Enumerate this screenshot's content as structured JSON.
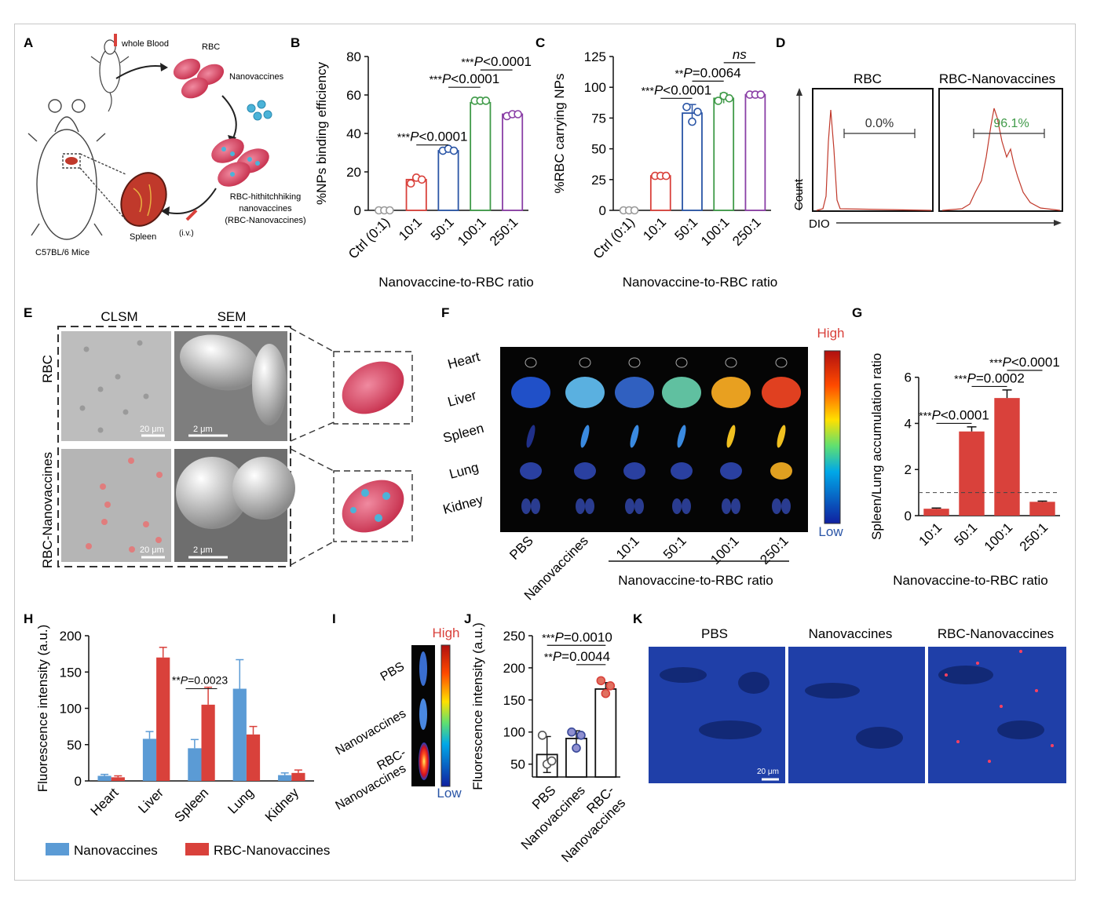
{
  "colors": {
    "red": "#d9413b",
    "blue": "#5b9bd5",
    "purple": "#8a3fa6",
    "green": "#3f9a48",
    "navy": "#2a55a6",
    "gray": "#9a9a9a",
    "dark_red": "#c0392b"
  },
  "panels": {
    "A": {
      "letter": "A",
      "whole_blood": "whole Blood",
      "rbc": "RBC",
      "nanovaccines": "Nanovaccines",
      "hitch_line1": "RBC-hithitchhiking",
      "hitch_line2": "nanovaccines",
      "hitch_line3": "(RBC-Nanovaccines)",
      "spleen": "Spleen",
      "iv": "(i.v.)",
      "mice": "C57BL/6 Mice"
    },
    "D": {
      "letter": "D",
      "left_label": "RBC",
      "right_label": "RBC-Nanovaccines",
      "left_value": "0.0%",
      "right_value": "96.1%",
      "ylabel": "Count",
      "xlabel": "DIO"
    },
    "E": {
      "letter": "E",
      "col1": "CLSM",
      "col2": "SEM",
      "row1": "RBC",
      "row2": "RBC-Nanovaccines",
      "scale_clsm": "20 μm",
      "scale_sem": "2 μm"
    },
    "F": {
      "letter": "F",
      "high": "High",
      "low": "Low",
      "organs": [
        "Heart",
        "Liver",
        "Spleen",
        "Lung",
        "Kidney"
      ],
      "groups": [
        "PBS",
        "Nanovaccines",
        "10:1",
        "50:1",
        "100:1",
        "250:1"
      ],
      "xlabel": "Nanovaccine-to-RBC ratio"
    },
    "I": {
      "letter": "I",
      "high": "High",
      "low": "Low",
      "rows": [
        "PBS",
        "Nanovaccines",
        "RBC-",
        "Nanovaccines"
      ]
    },
    "K": {
      "letter": "K",
      "cols": [
        "PBS",
        "Nanovaccines",
        "RBC-Nanovaccines"
      ],
      "scale": "20 μm"
    }
  },
  "chart_data": [
    {
      "id": "B",
      "letter": "B",
      "type": "bar",
      "categories": [
        "Ctrl (0:1)",
        "10:1",
        "50:1",
        "100:1",
        "250:1"
      ],
      "values": [
        0,
        16,
        31,
        56,
        50
      ],
      "points": [
        [
          0,
          0,
          0
        ],
        [
          14,
          17,
          16
        ],
        [
          31,
          32,
          31
        ],
        [
          57,
          57,
          57
        ],
        [
          49,
          50,
          50
        ]
      ],
      "errors": [
        0,
        1,
        1,
        0.5,
        0.5
      ],
      "ylabel": "%NPs binding efficiency",
      "xlabel": "Nanovaccine-to-RBC ratio",
      "ylim": [
        0,
        80
      ],
      "yticks": [
        0,
        20,
        40,
        60,
        80
      ],
      "annotations": [
        {
          "stars": "***",
          "text": "P<0.0001",
          "from": 1,
          "to": 2,
          "y": 34
        },
        {
          "stars": "***",
          "text": "P<0.0001",
          "from": 2,
          "to": 3,
          "y": 64
        },
        {
          "stars": "***",
          "text": "P<0.0001",
          "from": 3,
          "to": 4,
          "y": 73
        }
      ]
    },
    {
      "id": "C",
      "letter": "C",
      "type": "bar",
      "categories": [
        "Ctrl (0:1)",
        "10:1",
        "50:1",
        "100:1",
        "250:1"
      ],
      "values": [
        0,
        28,
        79,
        91,
        94
      ],
      "points": [
        [
          0,
          0,
          0
        ],
        [
          28,
          28,
          28
        ],
        [
          84,
          72,
          80
        ],
        [
          89,
          93,
          91
        ],
        [
          94,
          94,
          94
        ]
      ],
      "errors": [
        0,
        1,
        7,
        4,
        1
      ],
      "ylabel": "%RBC carrying NPs",
      "xlabel": "Nanovaccine-to-RBC ratio",
      "ylim": [
        0,
        125
      ],
      "yticks": [
        0,
        25,
        50,
        75,
        100,
        125
      ],
      "annotations": [
        {
          "stars": "***",
          "text": "P<0.0001",
          "from": 1,
          "to": 2,
          "y": 91
        },
        {
          "stars": "**",
          "text": "P=0.0064",
          "from": 2,
          "to": 3,
          "y": 105
        },
        {
          "stars": "",
          "text": "ns",
          "from": 3,
          "to": 4,
          "y": 120
        }
      ]
    },
    {
      "id": "G",
      "letter": "G",
      "type": "bar",
      "categories": [
        "10:1",
        "50:1",
        "100:1",
        "250:1"
      ],
      "values": [
        0.3,
        3.65,
        5.1,
        0.6
      ],
      "errors": [
        0.03,
        0.2,
        0.35,
        0.03
      ],
      "ylabel": "Spleen/Lung accumulation ratio",
      "xlabel": "Nanovaccine-to-RBC ratio",
      "ylim": [
        0,
        6.5
      ],
      "yticks": [
        0,
        2,
        4,
        6
      ],
      "reference_line": 1,
      "annotations": [
        {
          "stars": "***",
          "text": "P<0.0001",
          "from": 0,
          "to": 1,
          "y": 4.0
        },
        {
          "stars": "***",
          "text": "P=0.0002",
          "from": 1,
          "to": 2,
          "y": 5.6
        },
        {
          "stars": "***",
          "text": "P<0.0001",
          "from": 2,
          "to": 3,
          "y": 6.3
        }
      ]
    },
    {
      "id": "H",
      "letter": "H",
      "type": "bar",
      "categories": [
        "Heart",
        "Liver",
        "Spleen",
        "Lung",
        "Kidney"
      ],
      "series": [
        {
          "name": "Nanovaccines",
          "values": [
            7,
            58,
            45,
            127,
            8
          ],
          "errors": [
            2,
            10,
            12,
            40,
            3
          ]
        },
        {
          "name": "RBC-Nanovaccines",
          "values": [
            5,
            170,
            105,
            64,
            11
          ],
          "errors": [
            2,
            14,
            24,
            11,
            4
          ]
        }
      ],
      "ylabel": "Fluorescence intensity (a.u.)",
      "ylim": [
        0,
        200
      ],
      "yticks": [
        0,
        50,
        100,
        150,
        200
      ],
      "annotations": [
        {
          "stars": "**",
          "text": "P=0.0023",
          "from": 2,
          "to": 2,
          "y": 140
        }
      ]
    },
    {
      "id": "J",
      "letter": "J",
      "type": "bar",
      "categories": [
        "PBS",
        "Nanovaccines",
        "RBC-Nanovaccines"
      ],
      "values": [
        65,
        90,
        167
      ],
      "points": [
        [
          95,
          50,
          55
        ],
        [
          100,
          75,
          95
        ],
        [
          180,
          160,
          172
        ]
      ],
      "errors": [
        28,
        12,
        10
      ],
      "ylabel": "Fluorescence intensity (a.u.)",
      "ylim": [
        30,
        250
      ],
      "yticks": [
        50,
        100,
        150,
        200,
        250
      ],
      "annotations": [
        {
          "stars": "***",
          "text": "P=0.0010",
          "from": 0,
          "to": 2,
          "y": 235
        },
        {
          "stars": "**",
          "text": "P=0.0044",
          "from": 1,
          "to": 2,
          "y": 205
        }
      ]
    }
  ]
}
